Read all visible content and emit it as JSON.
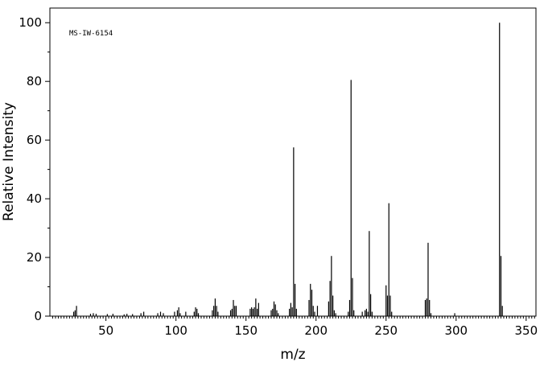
{
  "chart_data": {
    "type": "bar",
    "title": "",
    "annotation": "MS-IW-6154",
    "xlabel": "m/z",
    "ylabel": "Relative Intensity",
    "xlim": [
      10,
      357
    ],
    "ylim": [
      0,
      105
    ],
    "x_ticks": [
      50,
      100,
      150,
      200,
      250,
      300,
      350
    ],
    "y_ticks": [
      0,
      20,
      40,
      60,
      80,
      100
    ],
    "grid": false,
    "legend": "none",
    "peaks": [
      {
        "x": 27,
        "y": 1.5
      },
      {
        "x": 28,
        "y": 2.0
      },
      {
        "x": 29,
        "y": 3.5
      },
      {
        "x": 39,
        "y": 0.8
      },
      {
        "x": 41,
        "y": 1.0
      },
      {
        "x": 43,
        "y": 0.8
      },
      {
        "x": 51,
        "y": 0.7
      },
      {
        "x": 55,
        "y": 0.8
      },
      {
        "x": 63,
        "y": 0.6
      },
      {
        "x": 65,
        "y": 0.8
      },
      {
        "x": 69,
        "y": 0.7
      },
      {
        "x": 75,
        "y": 1.0
      },
      {
        "x": 77,
        "y": 1.5
      },
      {
        "x": 87,
        "y": 1.0
      },
      {
        "x": 89,
        "y": 1.5
      },
      {
        "x": 91,
        "y": 1.0
      },
      {
        "x": 99,
        "y": 1.5
      },
      {
        "x": 101,
        "y": 2.0
      },
      {
        "x": 102,
        "y": 3.0
      },
      {
        "x": 103,
        "y": 1.0
      },
      {
        "x": 107,
        "y": 1.5
      },
      {
        "x": 113,
        "y": 1.5
      },
      {
        "x": 114,
        "y": 3.0
      },
      {
        "x": 115,
        "y": 2.5
      },
      {
        "x": 116,
        "y": 1.0
      },
      {
        "x": 126,
        "y": 2.0
      },
      {
        "x": 127,
        "y": 3.5
      },
      {
        "x": 128,
        "y": 6.0
      },
      {
        "x": 129,
        "y": 3.5
      },
      {
        "x": 130,
        "y": 1.5
      },
      {
        "x": 139,
        "y": 2.0
      },
      {
        "x": 140,
        "y": 2.5
      },
      {
        "x": 141,
        "y": 5.5
      },
      {
        "x": 142,
        "y": 3.5
      },
      {
        "x": 143,
        "y": 3.5
      },
      {
        "x": 153,
        "y": 2.5
      },
      {
        "x": 154,
        "y": 3.0
      },
      {
        "x": 155,
        "y": 2.5
      },
      {
        "x": 156,
        "y": 3.0
      },
      {
        "x": 157,
        "y": 6.0
      },
      {
        "x": 158,
        "y": 2.5
      },
      {
        "x": 159,
        "y": 4.5
      },
      {
        "x": 168,
        "y": 2.0
      },
      {
        "x": 169,
        "y": 2.5
      },
      {
        "x": 170,
        "y": 5.0
      },
      {
        "x": 171,
        "y": 4.0
      },
      {
        "x": 172,
        "y": 2.0
      },
      {
        "x": 173,
        "y": 1.0
      },
      {
        "x": 181,
        "y": 2.5
      },
      {
        "x": 182,
        "y": 4.5
      },
      {
        "x": 183,
        "y": 3.0
      },
      {
        "x": 184,
        "y": 57.5
      },
      {
        "x": 185,
        "y": 11.0
      },
      {
        "x": 186,
        "y": 2.5
      },
      {
        "x": 195,
        "y": 5.5
      },
      {
        "x": 196,
        "y": 11.0
      },
      {
        "x": 197,
        "y": 9.0
      },
      {
        "x": 198,
        "y": 3.5
      },
      {
        "x": 199,
        "y": 1.5
      },
      {
        "x": 201,
        "y": 3.5
      },
      {
        "x": 209,
        "y": 5.0
      },
      {
        "x": 210,
        "y": 12.0
      },
      {
        "x": 211,
        "y": 20.5
      },
      {
        "x": 212,
        "y": 7.0
      },
      {
        "x": 213,
        "y": 2.0
      },
      {
        "x": 214,
        "y": 1.0
      },
      {
        "x": 223,
        "y": 1.5
      },
      {
        "x": 224,
        "y": 5.5
      },
      {
        "x": 225,
        "y": 80.5
      },
      {
        "x": 226,
        "y": 13.0
      },
      {
        "x": 227,
        "y": 2.0
      },
      {
        "x": 233,
        "y": 1.5
      },
      {
        "x": 235,
        "y": 2.0
      },
      {
        "x": 236,
        "y": 2.5
      },
      {
        "x": 237,
        "y": 1.5
      },
      {
        "x": 238,
        "y": 29.0
      },
      {
        "x": 239,
        "y": 7.5
      },
      {
        "x": 240,
        "y": 1.5
      },
      {
        "x": 250,
        "y": 10.5
      },
      {
        "x": 251,
        "y": 7.0
      },
      {
        "x": 252,
        "y": 38.5
      },
      {
        "x": 253,
        "y": 7.0
      },
      {
        "x": 254,
        "y": 1.5
      },
      {
        "x": 278,
        "y": 5.5
      },
      {
        "x": 279,
        "y": 6.0
      },
      {
        "x": 280,
        "y": 25.0
      },
      {
        "x": 281,
        "y": 5.5
      },
      {
        "x": 282,
        "y": 1.0
      },
      {
        "x": 299,
        "y": 1.0
      },
      {
        "x": 331,
        "y": 100.0
      },
      {
        "x": 332,
        "y": 20.5
      },
      {
        "x": 333,
        "y": 3.5
      }
    ]
  }
}
